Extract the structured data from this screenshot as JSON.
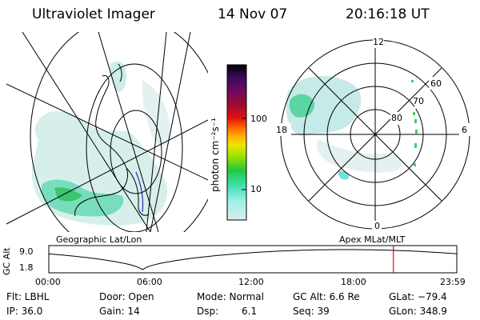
{
  "header": {
    "title": "Ultraviolet Imager",
    "date": "14 Nov 07",
    "time": "20:16:18 UT"
  },
  "colorbar": {
    "label": "photon cm⁻²s⁻¹",
    "ticks": [
      "100",
      "10"
    ],
    "colors": [
      "#000000",
      "#3a0a5a",
      "#6a0a60",
      "#a00a30",
      "#e01010",
      "#ff6000",
      "#ffb000",
      "#e8e800",
      "#90e000",
      "#20c840",
      "#40e0b0",
      "#a0f0e8",
      "#dcecec"
    ]
  },
  "polar": {
    "time_labels": [
      "12",
      "18",
      "6",
      "0"
    ],
    "lat_labels": [
      "60",
      "70",
      "80"
    ]
  },
  "left_map": {
    "caption": "Geographic Lat/Lon"
  },
  "right_map": {
    "caption": "Apex MLat/MLT"
  },
  "altitude_plot": {
    "ylabel": "GC Alt",
    "yticks": [
      "9.0",
      "1.8"
    ],
    "xticks": [
      "00:00",
      "06:00",
      "12:00",
      "18:00",
      "23:59"
    ],
    "marker_time_hours": 20.27,
    "line_color": "#000000",
    "marker_color": "#ff0000"
  },
  "footer": {
    "flt": "Flt: LBHL",
    "ip": "IP: 36.0",
    "door": "Door: Open",
    "gain": "Gain: 14",
    "mode": "Mode: Normal",
    "dsp_label": "Dsp:",
    "dsp_value": "6.1",
    "gcalt": "GC Alt: 6.6 Re",
    "seq": "Seq: 39",
    "glat": "GLat: −79.4",
    "glon": "GLon: 348.9"
  }
}
